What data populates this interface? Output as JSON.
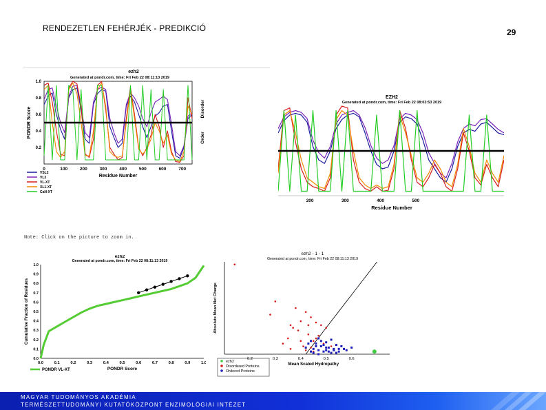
{
  "slide": {
    "title": "RENDEZETLEN FEHÉRJÉK - PREDIKCIÓ",
    "page_number": "29",
    "note": "Note: Click on the picture to zoom in."
  },
  "footer": {
    "line1": "MAGYAR TUDOMÁNYOS AKADÉMIA",
    "line2": "TERMÉSZETTUDOMÁNYI KUTATÓKÖZPONT",
    "line3": "ENZIMOLÓGIAI INTÉZET",
    "color": "#1130d8"
  },
  "colors": {
    "vsl2": "#1d1d9e",
    "vl3": "#7a22b8",
    "vl_xt": "#d81c1c",
    "xl1_xt": "#f08a00",
    "canxt": "#22cc22",
    "threshold": "#000000",
    "cdf": "#55cc33",
    "disordered": "#d81c1c",
    "ordered": "#1d1db8",
    "ezh2_point": "#44cc44"
  },
  "chart_data": [
    {
      "type": "line",
      "id": "pondr-full",
      "title": "ezh2",
      "subtitle": "Generated at pondr.com, time: Fri Feb 22 08:11:13 2019",
      "xlabel": "Residue Number",
      "ylabel": "PONDR Score",
      "right_label_top": "Disorder",
      "right_label_bottom": "Order",
      "xlim": [
        0,
        750
      ],
      "ylim": [
        0,
        1
      ],
      "x_ticks": [
        "0",
        "100",
        "200",
        "300",
        "400",
        "500",
        "600",
        "700"
      ],
      "y_ticks": [
        "0.2",
        "0.4",
        "0.6",
        "0.8",
        "1.0"
      ],
      "threshold": 0.5,
      "legend": [
        "VSL2",
        "VL3",
        "VL-XT",
        "XL1-XT",
        "CaN-XT"
      ],
      "series": [
        {
          "name": "VSL2",
          "values": [
            0.72,
            0.82,
            0.86,
            0.6,
            0.42,
            0.3,
            0.8,
            0.9,
            0.92,
            0.65,
            0.3,
            0.25,
            0.72,
            0.85,
            0.9,
            0.88,
            0.45,
            0.32,
            0.2,
            0.25,
            0.7,
            0.82,
            0.75,
            0.6,
            0.45,
            0.32,
            0.45,
            0.58,
            0.62,
            0.7,
            0.72,
            0.4,
            0.1,
            0.07,
            0.2,
            0.55,
            0.6
          ]
        },
        {
          "name": "VL3",
          "values": [
            0.78,
            0.9,
            0.92,
            0.7,
            0.5,
            0.38,
            0.82,
            0.94,
            0.95,
            0.7,
            0.38,
            0.32,
            0.75,
            0.9,
            0.93,
            0.9,
            0.55,
            0.38,
            0.25,
            0.3,
            0.72,
            0.86,
            0.8,
            0.7,
            0.55,
            0.45,
            0.62,
            0.75,
            0.78,
            0.82,
            0.78,
            0.48,
            0.15,
            0.1,
            0.22,
            0.58,
            0.62
          ]
        },
        {
          "name": "VL-XT",
          "values": [
            0.95,
            0.98,
            0.75,
            0.4,
            0.12,
            0.1,
            0.92,
            1.0,
            0.97,
            0.7,
            0.12,
            0.08,
            0.3,
            0.95,
            1.0,
            0.65,
            0.2,
            0.12,
            0.05,
            0.08,
            0.55,
            0.93,
            0.6,
            0.2,
            0.1,
            0.2,
            0.35,
            0.6,
            0.45,
            0.2,
            0.4,
            0.15,
            0.03,
            0.02,
            0.1,
            0.8,
            0.55
          ]
        },
        {
          "name": "XL1-XT",
          "values": [
            0.9,
            0.95,
            0.5,
            0.15,
            0.08,
            0.15,
            0.9,
            0.98,
            0.85,
            0.5,
            0.1,
            0.1,
            0.4,
            0.9,
            0.98,
            0.7,
            0.15,
            0.1,
            0.08,
            0.1,
            0.5,
            0.9,
            0.55,
            0.18,
            0.12,
            0.18,
            0.3,
            0.5,
            0.4,
            0.25,
            0.35,
            0.12,
            0.05,
            0.03,
            0.15,
            0.7,
            0.6
          ]
        },
        {
          "name": "CaN-XT",
          "values": [
            0.1,
            0.95,
            0.05,
            0.95,
            0.05,
            0.05,
            0.95,
            0.9,
            0.05,
            0.9,
            0.05,
            0.05,
            0.05,
            0.95,
            0.95,
            0.05,
            0.05,
            0.05,
            0.05,
            0.05,
            0.05,
            0.95,
            0.05,
            0.05,
            0.95,
            0.05,
            0.9,
            0.05,
            0.05,
            0.9,
            0.05,
            0.05,
            0.05,
            0.05,
            0.05,
            0.95,
            0.05
          ]
        }
      ]
    },
    {
      "type": "line",
      "id": "pondr-zoom",
      "title": "EZH2",
      "subtitle": "Generated at pondr.com, time: Fri Feb 22 08:03:53 2019",
      "xlabel": "Residue Number",
      "xlim": [
        110,
        750
      ],
      "ylim": [
        0,
        1
      ],
      "x_ticks": [
        "200",
        "300",
        "400",
        "500"
      ],
      "threshold": 0.5,
      "series": [
        {
          "name": "VSL2",
          "values": [
            0.7,
            0.84,
            0.9,
            0.92,
            0.9,
            0.82,
            0.55,
            0.4,
            0.36,
            0.5,
            0.75,
            0.85,
            0.9,
            0.92,
            0.88,
            0.7,
            0.5,
            0.35,
            0.3,
            0.32,
            0.5,
            0.82,
            0.88,
            0.86,
            0.8,
            0.62,
            0.4,
            0.3,
            0.2,
            0.15,
            0.3,
            0.55,
            0.7,
            0.74,
            0.72,
            0.8,
            0.82,
            0.76,
            0.7,
            0.68
          ]
        },
        {
          "name": "VL3",
          "values": [
            0.75,
            0.88,
            0.93,
            0.95,
            0.93,
            0.86,
            0.62,
            0.48,
            0.42,
            0.55,
            0.8,
            0.9,
            0.93,
            0.95,
            0.9,
            0.76,
            0.56,
            0.42,
            0.36,
            0.4,
            0.56,
            0.86,
            0.92,
            0.9,
            0.85,
            0.7,
            0.48,
            0.36,
            0.25,
            0.2,
            0.36,
            0.6,
            0.75,
            0.8,
            0.78,
            0.85,
            0.86,
            0.8,
            0.74,
            0.7
          ]
        },
        {
          "name": "VL-XT",
          "values": [
            0.3,
            0.95,
            0.98,
            0.6,
            0.3,
            0.15,
            0.1,
            0.08,
            0.05,
            0.2,
            0.9,
            1.0,
            0.98,
            0.4,
            0.15,
            0.08,
            0.05,
            0.1,
            0.05,
            0.06,
            0.3,
            0.95,
            0.75,
            0.4,
            0.15,
            0.1,
            0.2,
            0.35,
            0.25,
            0.1,
            0.05,
            0.3,
            0.7,
            0.5,
            0.2,
            0.12,
            0.35,
            0.2,
            0.1,
            0.4
          ]
        },
        {
          "name": "XL1-XT",
          "values": [
            0.25,
            0.9,
            0.95,
            0.7,
            0.4,
            0.2,
            0.15,
            0.1,
            0.08,
            0.25,
            0.85,
            0.95,
            0.9,
            0.5,
            0.2,
            0.12,
            0.08,
            0.12,
            0.08,
            0.1,
            0.35,
            0.9,
            0.7,
            0.45,
            0.2,
            0.15,
            0.25,
            0.4,
            0.3,
            0.15,
            0.1,
            0.35,
            0.75,
            0.55,
            0.25,
            0.15,
            0.4,
            0.25,
            0.15,
            0.45
          ]
        },
        {
          "name": "CaN-XT",
          "values": [
            0.05,
            0.95,
            0.05,
            0.9,
            0.05,
            0.05,
            0.95,
            0.05,
            0.05,
            0.05,
            0.95,
            0.05,
            0.95,
            0.05,
            0.05,
            0.05,
            0.05,
            0.9,
            0.05,
            0.05,
            0.05,
            0.95,
            0.05,
            0.05,
            0.95,
            0.05,
            0.05,
            0.05,
            0.05,
            0.05,
            0.05,
            0.05,
            0.05,
            0.9,
            0.05,
            0.05,
            0.9,
            0.05,
            0.05,
            0.05
          ]
        }
      ]
    },
    {
      "type": "line",
      "id": "cdf",
      "title": "ezh2",
      "subtitle": "Generated at pondr.com, time: Fri Feb 22 08:11:13 2019",
      "xlabel": "PONDR Score",
      "ylabel": "Cumulative Fraction of Residues",
      "xlim": [
        0,
        1
      ],
      "ylim": [
        0,
        1
      ],
      "x_ticks": [
        "0.0",
        "0.1",
        "0.2",
        "0.3",
        "0.4",
        "0.5",
        "0.6",
        "0.7",
        "0.8",
        "0.9",
        "1.0"
      ],
      "y_ticks": [
        "0.0",
        "0.1",
        "0.2",
        "0.3",
        "0.4",
        "0.5",
        "0.6",
        "0.7",
        "0.8",
        "0.9",
        "1.0"
      ],
      "legend": [
        "PONDR VL-XT"
      ],
      "series": [
        {
          "name": "PONDR VL-XT",
          "x": [
            0,
            0.02,
            0.05,
            0.1,
            0.15,
            0.2,
            0.25,
            0.3,
            0.35,
            0.4,
            0.45,
            0.5,
            0.55,
            0.6,
            0.65,
            0.7,
            0.75,
            0.8,
            0.85,
            0.9,
            0.95,
            1.0
          ],
          "y": [
            0,
            0.15,
            0.29,
            0.34,
            0.39,
            0.44,
            0.49,
            0.53,
            0.56,
            0.58,
            0.6,
            0.62,
            0.64,
            0.66,
            0.68,
            0.7,
            0.72,
            0.74,
            0.77,
            0.8,
            0.86,
            0.99
          ]
        },
        {
          "name": "boundary",
          "x": [
            0.6,
            0.65,
            0.7,
            0.75,
            0.8,
            0.85,
            0.9
          ],
          "y": [
            0.7,
            0.73,
            0.76,
            0.79,
            0.82,
            0.85,
            0.88
          ]
        }
      ]
    },
    {
      "type": "scatter",
      "id": "charge-hydropathy",
      "title": "ezh2 - 1 - 1",
      "subtitle": "Generated at pondr.com, time: Fri Feb 22 08:11:13 2019",
      "xlabel": "Mean Scaled Hydropathy",
      "ylabel": "Absolute Mean Net Charge",
      "x_ticks": [
        "0.2",
        "0.3",
        "0.4",
        "0.5",
        "0.6"
      ],
      "xlim": [
        0.1,
        0.75
      ],
      "ylim": [
        0,
        0.7
      ],
      "boundary": {
        "x": [
          0.42,
          0.7
        ],
        "y": [
          0.0,
          0.7
        ]
      },
      "legend": [
        "ezh2",
        "Disordered Proteins",
        "Ordered Proteins"
      ],
      "series": [
        {
          "name": "ezh2",
          "x": [
            0.69
          ],
          "y": [
            0.02
          ]
        },
        {
          "name": "Disordered Proteins",
          "x": [
            0.14,
            0.28,
            0.3,
            0.36,
            0.38,
            0.4,
            0.42,
            0.44,
            0.46,
            0.48,
            0.5,
            0.35,
            0.39,
            0.43,
            0.45,
            0.47,
            0.33,
            0.41,
            0.44,
            0.37,
            0.46,
            0.4,
            0.43,
            0.49,
            0.52,
            0.36,
            0.42,
            0.45
          ],
          "y": [
            0.68,
            0.3,
            0.4,
            0.22,
            0.35,
            0.25,
            0.32,
            0.28,
            0.24,
            0.22,
            0.2,
            0.12,
            0.18,
            0.15,
            0.1,
            0.14,
            0.08,
            0.06,
            0.05,
            0.2,
            0.12,
            0.1,
            0.22,
            0.08,
            0.06,
            0.04,
            0.03,
            0.02
          ]
        },
        {
          "name": "Ordered Proteins",
          "x": [
            0.42,
            0.44,
            0.45,
            0.46,
            0.47,
            0.48,
            0.49,
            0.5,
            0.51,
            0.52,
            0.53,
            0.54,
            0.55,
            0.56,
            0.45,
            0.47,
            0.49,
            0.51,
            0.53,
            0.44,
            0.46,
            0.48,
            0.5,
            0.52,
            0.55,
            0.58,
            0.6,
            0.43,
            0.47,
            0.5,
            0.54,
            0.57
          ],
          "y": [
            0.05,
            0.1,
            0.04,
            0.08,
            0.12,
            0.06,
            0.02,
            0.09,
            0.05,
            0.11,
            0.03,
            0.07,
            0.04,
            0.06,
            0.01,
            0.03,
            0.07,
            0.02,
            0.04,
            0.02,
            0.06,
            0.1,
            0.05,
            0.01,
            0.02,
            0.03,
            0.05,
            0.08,
            0.0,
            0.03,
            0.01,
            0.04
          ]
        }
      ]
    }
  ]
}
